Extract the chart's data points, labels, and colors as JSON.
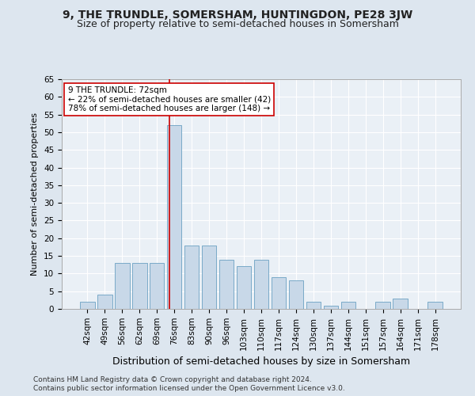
{
  "title": "9, THE TRUNDLE, SOMERSHAM, HUNTINGDON, PE28 3JW",
  "subtitle": "Size of property relative to semi-detached houses in Somersham",
  "xlabel": "Distribution of semi-detached houses by size in Somersham",
  "ylabel": "Number of semi-detached properties",
  "footnote1": "Contains HM Land Registry data © Crown copyright and database right 2024.",
  "footnote2": "Contains public sector information licensed under the Open Government Licence v3.0.",
  "categories": [
    "42sqm",
    "49sqm",
    "56sqm",
    "62sqm",
    "69sqm",
    "76sqm",
    "83sqm",
    "90sqm",
    "96sqm",
    "103sqm",
    "110sqm",
    "117sqm",
    "124sqm",
    "130sqm",
    "137sqm",
    "144sqm",
    "151sqm",
    "157sqm",
    "164sqm",
    "171sqm",
    "178sqm"
  ],
  "values": [
    2,
    4,
    13,
    13,
    13,
    52,
    18,
    18,
    14,
    12,
    14,
    9,
    8,
    2,
    1,
    2,
    0,
    2,
    3,
    0,
    2
  ],
  "bar_color": "#c8d8e8",
  "bar_edge_color": "#7aaac8",
  "vline_x_index": 4.71,
  "vline_color": "#cc0000",
  "annotation_text": "9 THE TRUNDLE: 72sqm\n← 22% of semi-detached houses are smaller (42)\n78% of semi-detached houses are larger (148) →",
  "annotation_box_facecolor": "#ffffff",
  "annotation_box_edgecolor": "#cc0000",
  "ylim": [
    0,
    65
  ],
  "yticks": [
    0,
    5,
    10,
    15,
    20,
    25,
    30,
    35,
    40,
    45,
    50,
    55,
    60,
    65
  ],
  "bg_color": "#dde6ef",
  "plot_bg_color": "#eaf0f6",
  "title_fontsize": 10,
  "subtitle_fontsize": 9,
  "ylabel_fontsize": 8,
  "xlabel_fontsize": 9,
  "tick_fontsize": 7.5,
  "footnote_fontsize": 6.5
}
